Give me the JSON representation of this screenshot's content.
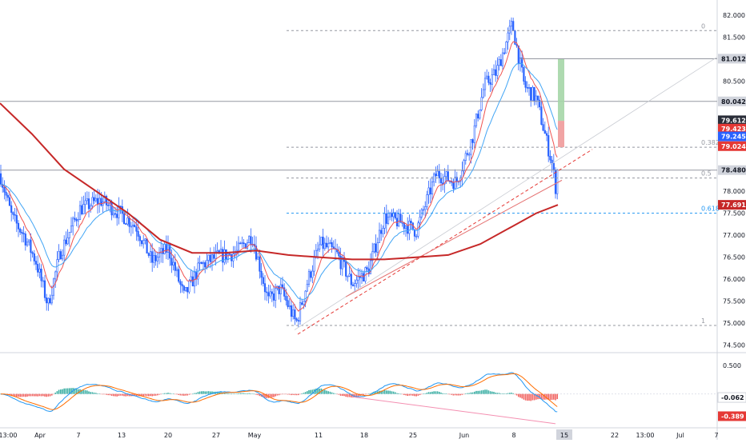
{
  "chart_data": [
    {
      "type": "candlestick",
      "price_axis": {
        "ticks": [
          "82.000",
          "81.500",
          "81.012",
          "80.500",
          "80.042",
          "79.612",
          "79.423",
          "79.245",
          "79.024",
          "78.480",
          "78.000",
          "77.691",
          "77.500",
          "77.000",
          "76.500",
          "76.000",
          "75.500",
          "75.000",
          "74.500"
        ],
        "range": [
          74.35,
          82.2
        ]
      },
      "time_axis": {
        "labels": [
          "13:00",
          "Apr",
          "7",
          "13",
          "20",
          "27",
          "May",
          "11",
          "18",
          "25",
          "Jun",
          "8",
          "15",
          "22",
          "13:00",
          "Jul",
          "7"
        ],
        "highlighted": "15"
      },
      "horizontal_levels": [
        80.042,
        78.48
      ],
      "fibonacci": {
        "levels": [
          {
            "label": "0",
            "value": 81.65
          },
          {
            "label": "0.382",
            "value": 79.0
          },
          {
            "label": "0.5",
            "value": 78.3
          },
          {
            "label": "0.618",
            "value": 77.5
          },
          {
            "label": "1",
            "value": 74.95
          }
        ]
      },
      "price_labels": [
        {
          "value": "81.012",
          "y": 81.012,
          "color": "#d1d4dc",
          "text_color": "#131722"
        },
        {
          "value": "80.042",
          "y": 80.042,
          "color": "#d1d4dc",
          "text_color": "#131722"
        },
        {
          "value": "79.612",
          "y": 79.612,
          "color": "#2a2e39",
          "text_color": "#ffffff"
        },
        {
          "value": "79.423",
          "y": 79.423,
          "color": "#e53935",
          "text_color": "#ffffff"
        },
        {
          "value": "79.245",
          "y": 79.245,
          "color": "#2962ff",
          "text_color": "#ffffff"
        },
        {
          "value": "79.024",
          "y": 79.024,
          "color": "#e53935",
          "text_color": "#ffffff"
        },
        {
          "value": "78.480",
          "y": 78.48,
          "color": "#d1d4dc",
          "text_color": "#131722"
        },
        {
          "value": "77.691",
          "y": 77.691,
          "color": "#c62828",
          "text_color": "#ffffff"
        }
      ],
      "annotations": {
        "target_zone": {
          "entry": 79.6,
          "target": 81.01,
          "stop": 79.0
        },
        "trendline": {
          "from": {
            "date": "2020-05-07",
            "value": 74.8
          },
          "to": {
            "date": "2020-06-16",
            "value": 78.9
          }
        }
      },
      "ohlc_path": [
        {
          "x": "13:00",
          "close": 78.4
        },
        {
          "x": "Apr",
          "close": 76.6
        },
        {
          "x": "7",
          "close": 77.6
        },
        {
          "x": "13",
          "close": 77.7
        },
        {
          "x": "20",
          "close": 76.0
        },
        {
          "x": "27",
          "close": 76.5
        },
        {
          "x": "May",
          "close": 76.8
        },
        {
          "x": "May 8",
          "close": 75.0
        },
        {
          "x": "11",
          "close": 76.7
        },
        {
          "x": "18",
          "close": 76.2
        },
        {
          "x": "25",
          "close": 77.0
        },
        {
          "x": "Jun",
          "close": 78.4
        },
        {
          "x": "8",
          "close": 81.8
        },
        {
          "x": "14",
          "close": 78.1
        }
      ]
    },
    {
      "type": "oscillator",
      "ticks": [
        "0.500",
        "-0.062",
        "-0.389"
      ],
      "range": [
        -0.55,
        0.68
      ],
      "last_values": [
        {
          "value": "-0.062",
          "color": "#ffffff",
          "text_color": "#131722",
          "border": "#d1d4dc"
        },
        {
          "value": "-0.389",
          "color": "#e53935",
          "text_color": "#ffffff"
        }
      ]
    }
  ],
  "colors": {
    "up": "#26a69a",
    "down": "#ef5350",
    "candle": "#2962ff",
    "ema_fast": "#ef5350",
    "ema_mid": "#42a5f5",
    "sma_long": "#c62828",
    "trendline": "#e53935",
    "fib": "#787b86",
    "fib_618": "#2196f3",
    "target_zone": "#a5d6a7",
    "stop_zone": "#ef9a9a"
  }
}
